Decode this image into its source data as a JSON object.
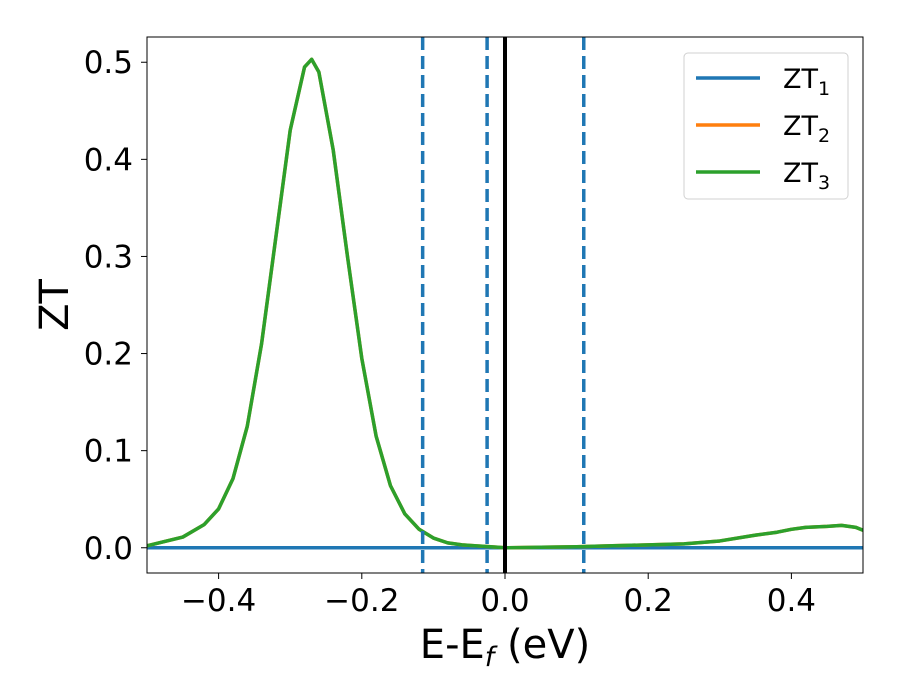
{
  "chart_data": {
    "type": "line",
    "xlabel": "E-E",
    "xlabel_sub": "f",
    "xlabel_unit": " (eV)",
    "ylabel": "ZT",
    "xlim": [
      -0.5,
      0.5
    ],
    "ylim": [
      -0.026,
      0.526
    ],
    "xticks": [
      -0.4,
      -0.2,
      0.0,
      0.2,
      0.4
    ],
    "xtick_labels": [
      "−0.4",
      "−0.2",
      "0.0",
      "0.2",
      "0.4"
    ],
    "yticks": [
      0.0,
      0.1,
      0.2,
      0.3,
      0.4,
      0.5
    ],
    "ytick_labels": [
      "0.0",
      "0.1",
      "0.2",
      "0.3",
      "0.4",
      "0.5"
    ],
    "grid": false,
    "legend_position": "top-right",
    "series": [
      {
        "name": "ZT",
        "sub": "1",
        "color": "#1f77b4",
        "x": [
          -0.5,
          0.5
        ],
        "y": [
          0.0,
          0.0
        ]
      },
      {
        "name": "ZT",
        "sub": "2",
        "color": "#ff7f0e",
        "x": [
          -0.5,
          -0.45,
          -0.42,
          -0.4,
          -0.38,
          -0.36,
          -0.34,
          -0.32,
          -0.3,
          -0.28,
          -0.27,
          -0.26,
          -0.24,
          -0.22,
          -0.2,
          -0.18,
          -0.16,
          -0.14,
          -0.12,
          -0.1,
          -0.08,
          -0.06,
          -0.04,
          -0.02,
          0.0,
          0.05,
          0.1,
          0.15,
          0.2,
          0.25,
          0.3,
          0.35,
          0.38,
          0.4,
          0.42,
          0.45,
          0.47,
          0.49,
          0.5
        ],
        "y": [
          0.002,
          0.011,
          0.024,
          0.04,
          0.071,
          0.125,
          0.21,
          0.32,
          0.43,
          0.495,
          0.503,
          0.49,
          0.41,
          0.3,
          0.195,
          0.115,
          0.064,
          0.035,
          0.019,
          0.01,
          0.005,
          0.003,
          0.002,
          0.001,
          0.0,
          0.0005,
          0.001,
          0.002,
          0.003,
          0.004,
          0.007,
          0.013,
          0.016,
          0.019,
          0.021,
          0.022,
          0.023,
          0.021,
          0.018
        ]
      },
      {
        "name": "ZT",
        "sub": "3",
        "color": "#2ca02c",
        "x": [
          -0.5,
          -0.45,
          -0.42,
          -0.4,
          -0.38,
          -0.36,
          -0.34,
          -0.32,
          -0.3,
          -0.28,
          -0.27,
          -0.26,
          -0.24,
          -0.22,
          -0.2,
          -0.18,
          -0.16,
          -0.14,
          -0.12,
          -0.1,
          -0.08,
          -0.06,
          -0.04,
          -0.02,
          0.0,
          0.05,
          0.1,
          0.15,
          0.2,
          0.25,
          0.3,
          0.35,
          0.38,
          0.4,
          0.42,
          0.45,
          0.47,
          0.49,
          0.5
        ],
        "y": [
          0.002,
          0.011,
          0.024,
          0.04,
          0.071,
          0.125,
          0.21,
          0.32,
          0.43,
          0.495,
          0.503,
          0.49,
          0.41,
          0.3,
          0.195,
          0.115,
          0.064,
          0.035,
          0.019,
          0.01,
          0.005,
          0.003,
          0.002,
          0.001,
          0.0,
          0.0005,
          0.001,
          0.002,
          0.003,
          0.004,
          0.007,
          0.013,
          0.016,
          0.019,
          0.021,
          0.022,
          0.023,
          0.021,
          0.018
        ]
      }
    ],
    "vlines": [
      {
        "x": -0.115,
        "style": "dashed",
        "color": "#1f77b4"
      },
      {
        "x": -0.025,
        "style": "dashed",
        "color": "#1f77b4"
      },
      {
        "x": 0.0,
        "style": "solid",
        "color": "#000000"
      },
      {
        "x": 0.11,
        "style": "dashed",
        "color": "#1f77b4"
      }
    ]
  }
}
